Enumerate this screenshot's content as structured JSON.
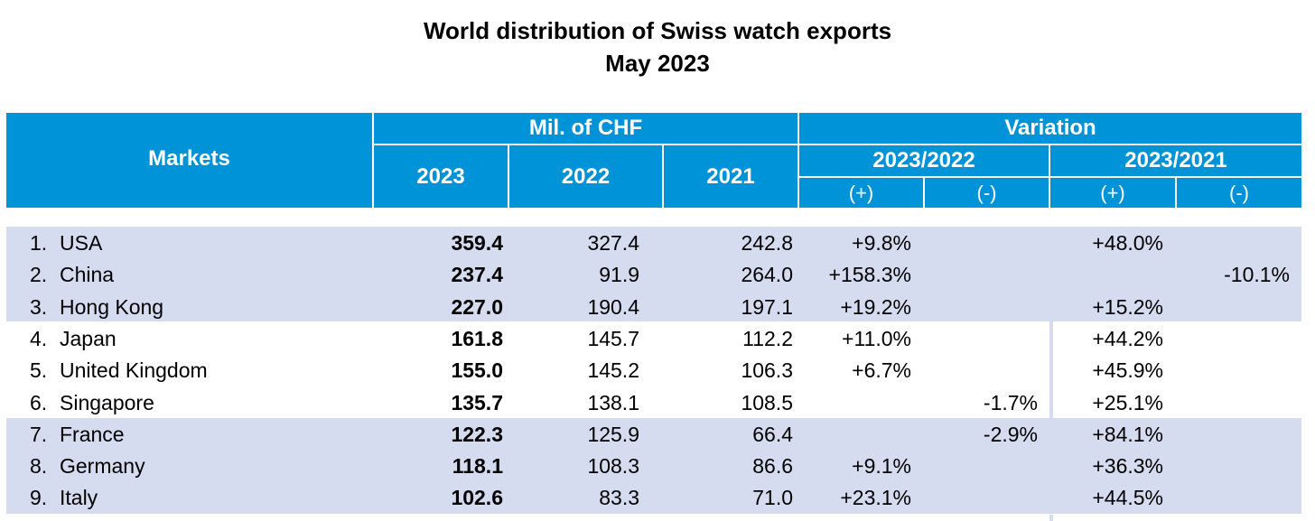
{
  "title": "World distribution of Swiss watch exports",
  "subtitle": "May 2023",
  "colors": {
    "header_bg": "#0093d8",
    "header_text": "#ffffff",
    "band": "#d5dcf0"
  },
  "headers": {
    "markets": "Markets",
    "mil_chf": "Mil. of CHF",
    "variation": "Variation",
    "y2023": "2023",
    "y2022": "2022",
    "y2021": "2021",
    "v2023_2022": "2023/2022",
    "v2023_2021": "2023/2021",
    "plus": "(+)",
    "minus": "(-)"
  },
  "chart_data": {
    "type": "table",
    "title": "World distribution of Swiss watch exports",
    "subtitle": "May 2023",
    "columns": [
      "Markets",
      "2023",
      "2022",
      "2021",
      "2023/2022 (+)",
      "2023/2022 (-)",
      "2023/2021 (+)",
      "2023/2021 (-)"
    ],
    "rows": [
      {
        "rank": "1.",
        "market": "USA",
        "y2023": "359.4",
        "y2022": "327.4",
        "y2021": "242.8",
        "v22_plus": "+9.8%",
        "v22_minus": "",
        "v21_plus": "+48.0%",
        "v21_minus": ""
      },
      {
        "rank": "2.",
        "market": "China",
        "y2023": "237.4",
        "y2022": "91.9",
        "y2021": "264.0",
        "v22_plus": "+158.3%",
        "v22_minus": "",
        "v21_plus": "",
        "v21_minus": "-10.1%"
      },
      {
        "rank": "3.",
        "market": "Hong Kong",
        "y2023": "227.0",
        "y2022": "190.4",
        "y2021": "197.1",
        "v22_plus": "+19.2%",
        "v22_minus": "",
        "v21_plus": "+15.2%",
        "v21_minus": ""
      },
      {
        "rank": "4.",
        "market": "Japan",
        "y2023": "161.8",
        "y2022": "145.7",
        "y2021": "112.2",
        "v22_plus": "+11.0%",
        "v22_minus": "",
        "v21_plus": "+44.2%",
        "v21_minus": ""
      },
      {
        "rank": "5.",
        "market": "United Kingdom",
        "y2023": "155.0",
        "y2022": "145.2",
        "y2021": "106.3",
        "v22_plus": "+6.7%",
        "v22_minus": "",
        "v21_plus": "+45.9%",
        "v21_minus": ""
      },
      {
        "rank": "6.",
        "market": "Singapore",
        "y2023": "135.7",
        "y2022": "138.1",
        "y2021": "108.5",
        "v22_plus": "",
        "v22_minus": "-1.7%",
        "v21_plus": "+25.1%",
        "v21_minus": ""
      },
      {
        "rank": "7.",
        "market": "France",
        "y2023": "122.3",
        "y2022": "125.9",
        "y2021": "66.4",
        "v22_plus": "",
        "v22_minus": "-2.9%",
        "v21_plus": "+84.1%",
        "v21_minus": ""
      },
      {
        "rank": "8.",
        "market": "Germany",
        "y2023": "118.1",
        "y2022": "108.3",
        "y2021": "86.6",
        "v22_plus": "+9.1%",
        "v22_minus": "",
        "v21_plus": "+36.3%",
        "v21_minus": ""
      },
      {
        "rank": "9.",
        "market": "Italy",
        "y2023": "102.6",
        "y2022": "83.3",
        "y2021": "71.0",
        "v22_plus": "+23.1%",
        "v22_minus": "",
        "v21_plus": "+44.5%",
        "v21_minus": ""
      }
    ]
  }
}
